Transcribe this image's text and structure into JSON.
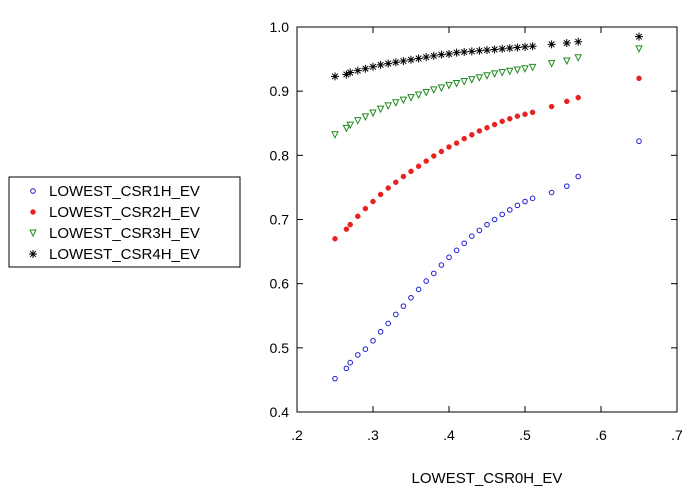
{
  "chart_data": {
    "type": "scatter",
    "xlabel": "LOWEST_CSR0H_EV",
    "ylabel": "",
    "xlim": [
      0.2,
      0.7
    ],
    "ylim": [
      0.4,
      1.0
    ],
    "x_ticks": [
      ".2",
      ".3",
      ".4",
      ".5",
      ".6",
      ".7"
    ],
    "y_ticks": [
      "0.4",
      "0.5",
      "0.6",
      "0.7",
      "0.8",
      "0.9",
      "1.0"
    ],
    "grid": false,
    "legend_position": "left",
    "x": [
      0.25,
      0.265,
      0.27,
      0.28,
      0.29,
      0.3,
      0.31,
      0.32,
      0.33,
      0.34,
      0.35,
      0.36,
      0.37,
      0.38,
      0.39,
      0.4,
      0.41,
      0.42,
      0.43,
      0.44,
      0.45,
      0.46,
      0.47,
      0.48,
      0.49,
      0.5,
      0.51,
      0.535,
      0.555,
      0.57,
      0.65
    ],
    "series": [
      {
        "name": "LOWEST_CSR1H_EV",
        "marker": "open-circle",
        "color": "#1f1fd6",
        "values": [
          0.452,
          0.468,
          0.477,
          0.489,
          0.498,
          0.511,
          0.525,
          0.538,
          0.552,
          0.565,
          0.578,
          0.591,
          0.604,
          0.616,
          0.629,
          0.641,
          0.652,
          0.663,
          0.674,
          0.683,
          0.692,
          0.7,
          0.708,
          0.715,
          0.722,
          0.728,
          0.733,
          0.742,
          0.752,
          0.767,
          0.822
        ]
      },
      {
        "name": "LOWEST_CSR2H_EV",
        "marker": "filled-circle",
        "color": "#e8231f",
        "values": [
          0.67,
          0.685,
          0.692,
          0.705,
          0.717,
          0.728,
          0.739,
          0.749,
          0.758,
          0.767,
          0.775,
          0.783,
          0.791,
          0.799,
          0.806,
          0.813,
          0.819,
          0.826,
          0.832,
          0.838,
          0.843,
          0.848,
          0.853,
          0.857,
          0.861,
          0.864,
          0.867,
          0.876,
          0.884,
          0.89,
          0.92
        ]
      },
      {
        "name": "LOWEST_CSR3H_EV",
        "marker": "triangle-down",
        "color": "#1f8a1f",
        "values": [
          0.832,
          0.842,
          0.847,
          0.854,
          0.86,
          0.866,
          0.872,
          0.877,
          0.882,
          0.886,
          0.89,
          0.894,
          0.898,
          0.902,
          0.905,
          0.909,
          0.912,
          0.915,
          0.918,
          0.921,
          0.924,
          0.927,
          0.929,
          0.931,
          0.933,
          0.935,
          0.937,
          0.943,
          0.947,
          0.952,
          0.966
        ]
      },
      {
        "name": "LOWEST_CSR4H_EV",
        "marker": "asterisk",
        "color": "#000000",
        "values": [
          0.923,
          0.926,
          0.929,
          0.932,
          0.935,
          0.938,
          0.941,
          0.943,
          0.945,
          0.947,
          0.949,
          0.951,
          0.953,
          0.955,
          0.957,
          0.958,
          0.96,
          0.961,
          0.962,
          0.963,
          0.964,
          0.965,
          0.966,
          0.967,
          0.968,
          0.969,
          0.97,
          0.973,
          0.975,
          0.977,
          0.985
        ]
      }
    ]
  }
}
